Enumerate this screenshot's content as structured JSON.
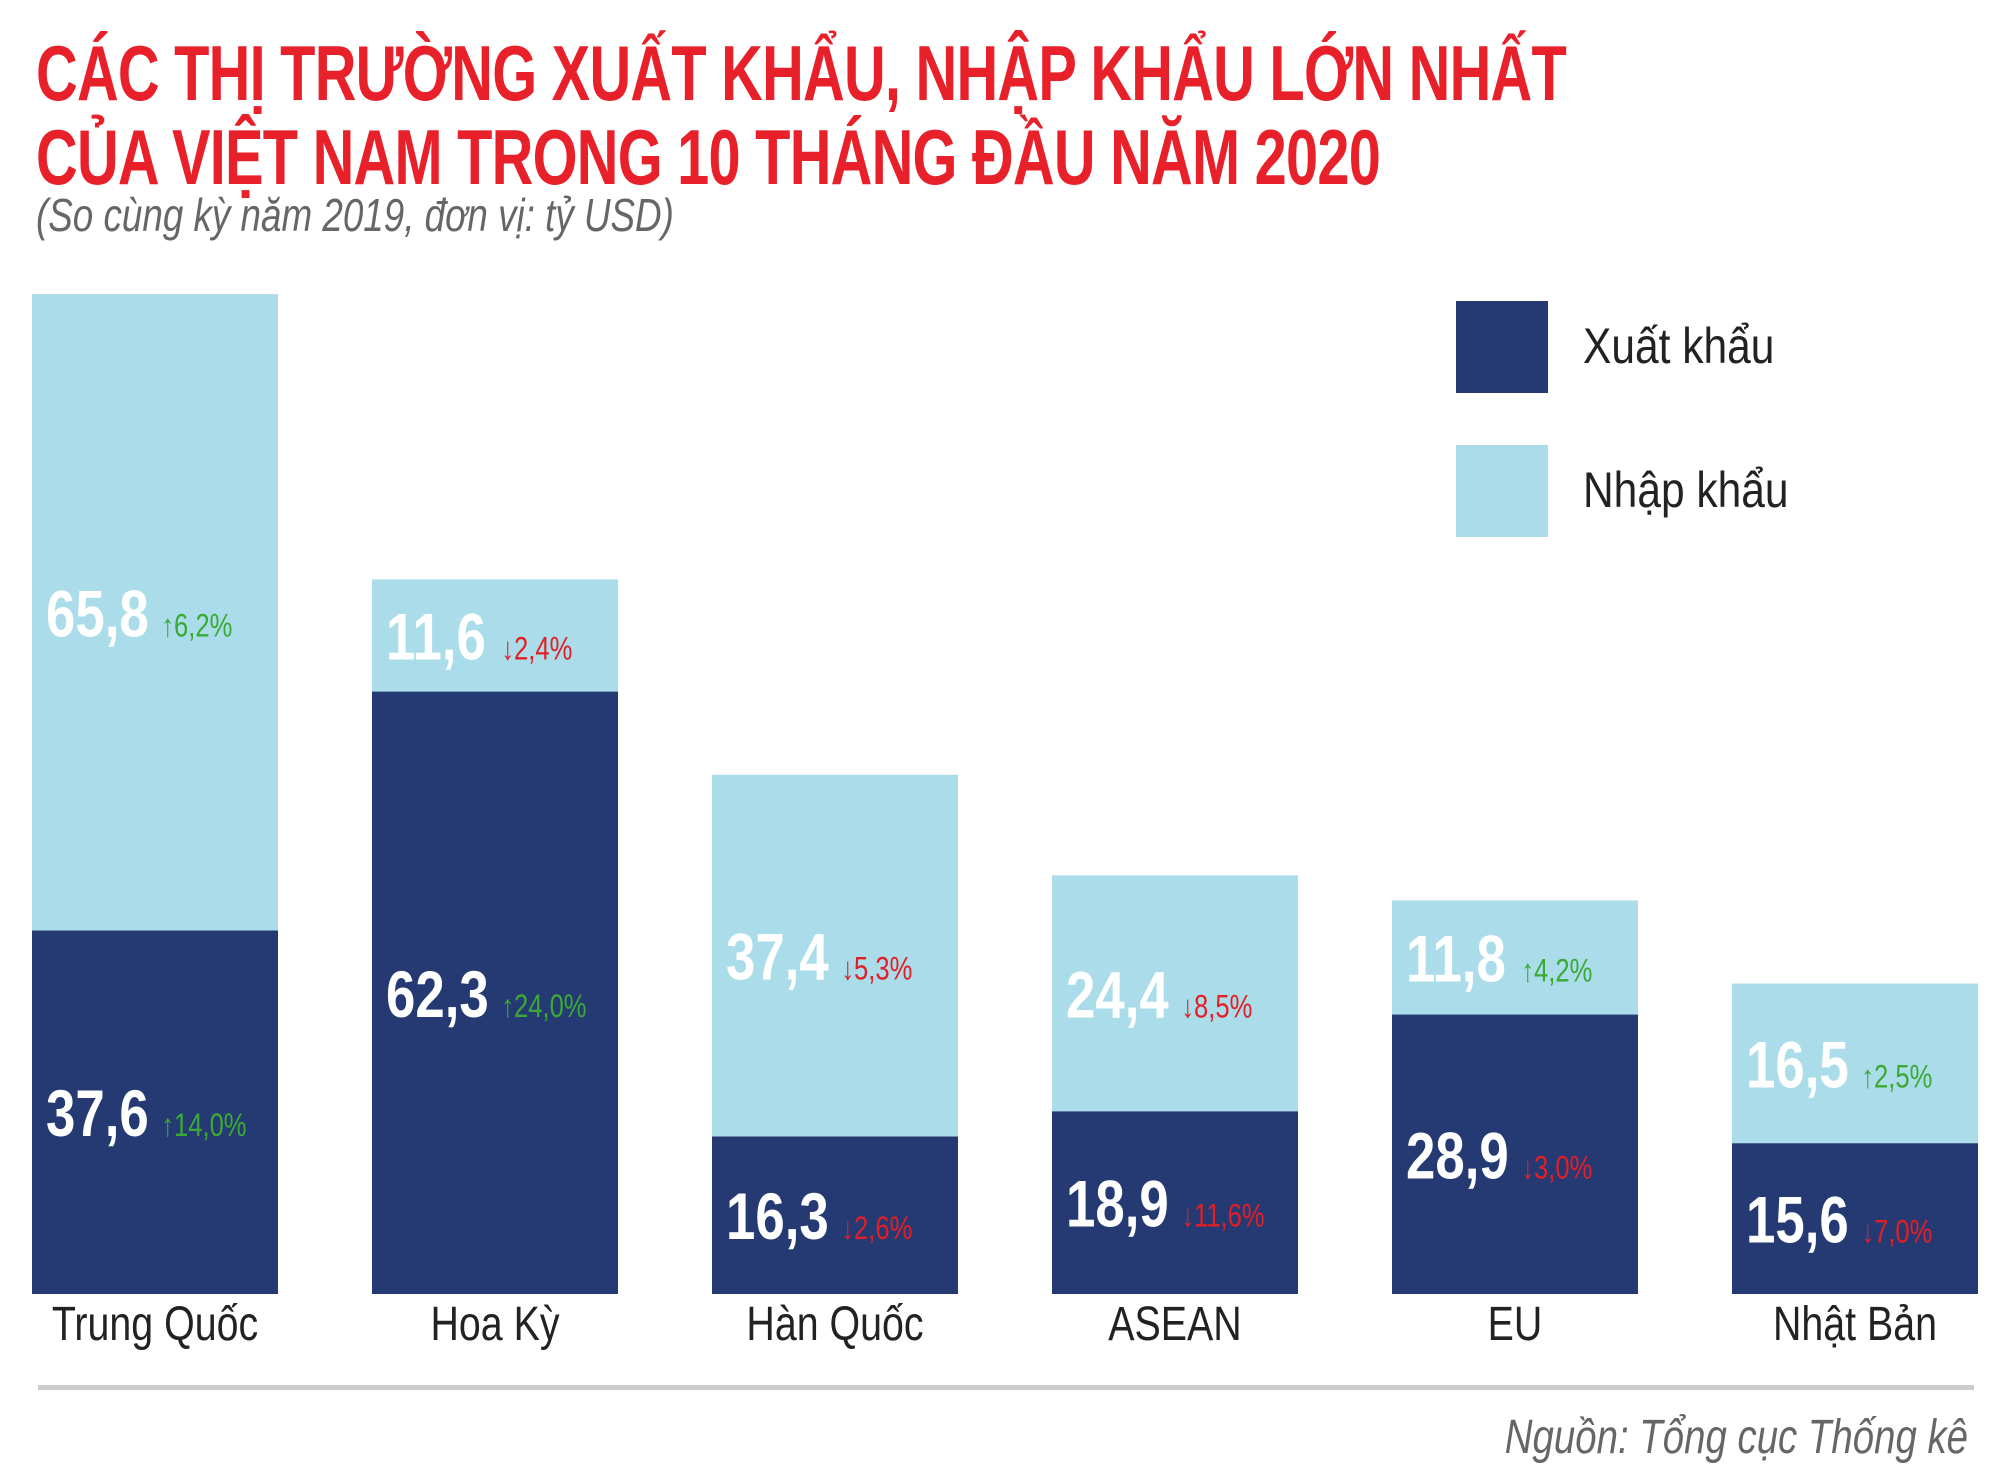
{
  "title_line1": "CÁC THỊ TRƯỜNG XUẤT KHẨU, NHẬP KHẨU LỚN NHẤT",
  "title_line2": "CỦA VIỆT NAM TRONG 10 THÁNG ĐẦU NĂM 2020",
  "subtitle": "(So cùng kỳ năm 2019, đơn vị: tỷ USD)",
  "source": "Nguồn: Tổng cục Thống kê",
  "colors": {
    "export": "#253a73",
    "import": "#aadde9",
    "up": "#3aaa35",
    "down": "#e31e24",
    "title": "#e8202a"
  },
  "chart_data": {
    "type": "bar",
    "stacked": true,
    "title": "CÁC THỊ TRƯỜNG XUẤT KHẨU, NHẬP KHẨU LỚN NHẤT CỦA VIỆT NAM TRONG 10 THÁNG ĐẦU NĂM 2020",
    "unit": "tỷ USD",
    "categories": [
      "Trung Quốc",
      "Hoa Kỳ",
      "Hàn Quốc",
      "ASEAN",
      "EU",
      "Nhật Bản"
    ],
    "legend_position": "top-right",
    "grid": false,
    "series": [
      {
        "name": "Xuất khẩu",
        "values": [
          37.6,
          62.3,
          16.3,
          18.9,
          28.9,
          15.6
        ],
        "labels": [
          "37,6",
          "62,3",
          "16,3",
          "18,9",
          "28,9",
          "15,6"
        ],
        "changes": [
          "14,0%",
          "24,0%",
          "2,6%",
          "11,6%",
          "3,0%",
          "7,0%"
        ],
        "directions": [
          "up",
          "up",
          "down",
          "down",
          "down",
          "down"
        ]
      },
      {
        "name": "Nhập khẩu",
        "values": [
          65.8,
          11.6,
          37.4,
          24.4,
          11.8,
          16.5
        ],
        "labels": [
          "65,8",
          "11,6",
          "37,4",
          "24,4",
          "11,8",
          "16,5"
        ],
        "changes": [
          "6,2%",
          "2,4%",
          "5,3%",
          "8,5%",
          "4,2%",
          "2,5%"
        ],
        "directions": [
          "up",
          "down",
          "down",
          "down",
          "up",
          "up"
        ]
      }
    ]
  }
}
